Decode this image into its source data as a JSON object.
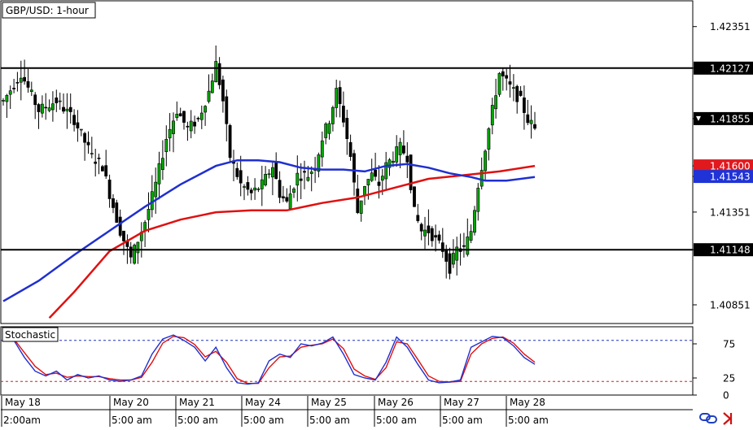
{
  "chart_title": "GBP/USD: 1-hour",
  "indicator_label": "Stochastic",
  "colors": {
    "candle": "#00a600",
    "wick": "#000000",
    "ma_fast": "#1f2fd0",
    "ma_slow": "#e01010",
    "overbought_line": "#2030c0",
    "oversold_line": "#d02020",
    "stoch_k": "#1f2fd0",
    "stoch_d": "#e01010",
    "price_label_red": "#e0191e",
    "price_label_blue": "#1f33d6"
  },
  "icons": [
    "link-icon",
    "arrow-right-icon"
  ],
  "chart_data": {
    "type": "candlestick",
    "title": "GBP/USD: 1-hour",
    "xlabel": "",
    "ylabel": "",
    "ylim": [
      1.4075,
      1.4249
    ],
    "y_ticks": [
      "1.42351",
      "1.42127",
      "1.41855",
      "1.41600",
      "1.41543",
      "1.41351",
      "1.41148",
      "1.40851"
    ],
    "x_date_labels": [
      "May 18",
      "May 20",
      "May 21",
      "May 24",
      "May 25",
      "May 26",
      "May 27",
      "May 28"
    ],
    "x_time_labels": [
      "2:00am",
      "5:00 am",
      "5:00 am",
      "5:00 am",
      "5:00 am",
      "5:00 am",
      "5:00 am",
      "5:00 am"
    ],
    "horizontal_levels": [
      1.42127,
      1.41148
    ],
    "last_price": 1.41855,
    "ma_slow_last": 1.416,
    "ma_fast_last": 1.41543,
    "price_path": [
      [
        0,
        1.4195
      ],
      [
        5,
        1.421
      ],
      [
        10,
        1.419
      ],
      [
        15,
        1.4195
      ],
      [
        20,
        1.4185
      ],
      [
        25,
        1.4165
      ],
      [
        28,
        1.416
      ],
      [
        30,
        1.4145
      ],
      [
        33,
        1.4125
      ],
      [
        36,
        1.411
      ],
      [
        38,
        1.412
      ],
      [
        40,
        1.413
      ],
      [
        43,
        1.415
      ],
      [
        46,
        1.4175
      ],
      [
        49,
        1.419
      ],
      [
        52,
        1.418
      ],
      [
        55,
        1.4185
      ],
      [
        58,
        1.42
      ],
      [
        60,
        1.4215
      ],
      [
        62,
        1.4195
      ],
      [
        64,
        1.4165
      ],
      [
        67,
        1.415
      ],
      [
        70,
        1.4145
      ],
      [
        73,
        1.415
      ],
      [
        76,
        1.416
      ],
      [
        78,
        1.4145
      ],
      [
        80,
        1.414
      ],
      [
        83,
        1.4155
      ],
      [
        86,
        1.4155
      ],
      [
        88,
        1.416
      ],
      [
        90,
        1.4175
      ],
      [
        92,
        1.4185
      ],
      [
        94,
        1.42
      ],
      [
        96,
        1.4185
      ],
      [
        98,
        1.4165
      ],
      [
        100,
        1.4135
      ],
      [
        102,
        1.415
      ],
      [
        104,
        1.4155
      ],
      [
        106,
        1.415
      ],
      [
        108,
        1.416
      ],
      [
        110,
        1.4165
      ],
      [
        112,
        1.417
      ],
      [
        114,
        1.4165
      ],
      [
        116,
        1.4135
      ],
      [
        118,
        1.4125
      ],
      [
        120,
        1.4125
      ],
      [
        122,
        1.412
      ],
      [
        124,
        1.4115
      ],
      [
        126,
        1.4105
      ],
      [
        128,
        1.4115
      ],
      [
        130,
        1.4115
      ],
      [
        132,
        1.4125
      ],
      [
        134,
        1.415
      ],
      [
        136,
        1.417
      ],
      [
        138,
        1.419
      ],
      [
        140,
        1.421
      ],
      [
        142,
        1.4205
      ],
      [
        144,
        1.42
      ],
      [
        146,
        1.4195
      ],
      [
        148,
        1.4185
      ],
      [
        150,
        1.418
      ]
    ],
    "ma_fast_path": [
      [
        0,
        1.4087
      ],
      [
        10,
        1.4098
      ],
      [
        20,
        1.4112
      ],
      [
        30,
        1.4125
      ],
      [
        40,
        1.4138
      ],
      [
        50,
        1.415
      ],
      [
        60,
        1.416
      ],
      [
        66,
        1.4163
      ],
      [
        72,
        1.4163
      ],
      [
        78,
        1.4162
      ],
      [
        84,
        1.4159
      ],
      [
        90,
        1.4158
      ],
      [
        96,
        1.4158
      ],
      [
        102,
        1.4157
      ],
      [
        108,
        1.416
      ],
      [
        114,
        1.4161
      ],
      [
        120,
        1.4159
      ],
      [
        126,
        1.4156
      ],
      [
        132,
        1.4154
      ],
      [
        136,
        1.4152
      ],
      [
        142,
        1.4152
      ],
      [
        150,
        1.4154
      ]
    ],
    "ma_slow_path": [
      [
        13,
        1.4078
      ],
      [
        20,
        1.4092
      ],
      [
        30,
        1.4114
      ],
      [
        40,
        1.4125
      ],
      [
        50,
        1.4131
      ],
      [
        60,
        1.4135
      ],
      [
        70,
        1.4136
      ],
      [
        80,
        1.4136
      ],
      [
        90,
        1.414
      ],
      [
        100,
        1.4143
      ],
      [
        110,
        1.4148
      ],
      [
        120,
        1.4153
      ],
      [
        130,
        1.4155
      ],
      [
        140,
        1.4157
      ],
      [
        150,
        1.416
      ]
    ],
    "stochastic": {
      "ylim": [
        0,
        100
      ],
      "y_ticks": [
        "75",
        "25",
        "0"
      ],
      "levels": [
        80,
        20
      ],
      "series_k": [
        [
          0,
          85
        ],
        [
          3,
          80
        ],
        [
          6,
          55
        ],
        [
          9,
          35
        ],
        [
          12,
          28
        ],
        [
          15,
          35
        ],
        [
          18,
          22
        ],
        [
          21,
          30
        ],
        [
          24,
          25
        ],
        [
          27,
          28
        ],
        [
          30,
          22
        ],
        [
          33,
          20
        ],
        [
          36,
          22
        ],
        [
          39,
          28
        ],
        [
          42,
          60
        ],
        [
          45,
          82
        ],
        [
          48,
          88
        ],
        [
          51,
          80
        ],
        [
          54,
          70
        ],
        [
          57,
          50
        ],
        [
          60,
          70
        ],
        [
          63,
          40
        ],
        [
          66,
          18
        ],
        [
          69,
          16
        ],
        [
          72,
          18
        ],
        [
          75,
          50
        ],
        [
          78,
          60
        ],
        [
          81,
          55
        ],
        [
          84,
          75
        ],
        [
          87,
          72
        ],
        [
          90,
          76
        ],
        [
          93,
          85
        ],
        [
          96,
          60
        ],
        [
          99,
          30
        ],
        [
          102,
          25
        ],
        [
          105,
          22
        ],
        [
          108,
          48
        ],
        [
          111,
          85
        ],
        [
          114,
          70
        ],
        [
          117,
          45
        ],
        [
          120,
          22
        ],
        [
          123,
          18
        ],
        [
          126,
          19
        ],
        [
          129,
          22
        ],
        [
          132,
          70
        ],
        [
          135,
          78
        ],
        [
          138,
          86
        ],
        [
          141,
          84
        ],
        [
          144,
          72
        ],
        [
          147,
          55
        ],
        [
          150,
          45
        ]
      ],
      "series_d": [
        [
          0,
          82
        ],
        [
          3,
          82
        ],
        [
          6,
          62
        ],
        [
          9,
          42
        ],
        [
          12,
          30
        ],
        [
          15,
          32
        ],
        [
          18,
          26
        ],
        [
          21,
          28
        ],
        [
          24,
          27
        ],
        [
          27,
          27
        ],
        [
          30,
          24
        ],
        [
          33,
          22
        ],
        [
          36,
          22
        ],
        [
          39,
          26
        ],
        [
          42,
          48
        ],
        [
          45,
          76
        ],
        [
          48,
          86
        ],
        [
          51,
          84
        ],
        [
          54,
          74
        ],
        [
          57,
          56
        ],
        [
          60,
          64
        ],
        [
          63,
          48
        ],
        [
          66,
          24
        ],
        [
          69,
          17
        ],
        [
          72,
          17
        ],
        [
          75,
          40
        ],
        [
          78,
          56
        ],
        [
          81,
          57
        ],
        [
          84,
          70
        ],
        [
          87,
          73
        ],
        [
          90,
          75
        ],
        [
          93,
          82
        ],
        [
          96,
          68
        ],
        [
          99,
          38
        ],
        [
          102,
          28
        ],
        [
          105,
          23
        ],
        [
          108,
          40
        ],
        [
          111,
          78
        ],
        [
          114,
          75
        ],
        [
          117,
          52
        ],
        [
          120,
          28
        ],
        [
          123,
          20
        ],
        [
          126,
          19
        ],
        [
          129,
          20
        ],
        [
          132,
          60
        ],
        [
          135,
          75
        ],
        [
          138,
          83
        ],
        [
          141,
          85
        ],
        [
          144,
          76
        ],
        [
          147,
          60
        ],
        [
          150,
          48
        ]
      ]
    }
  }
}
